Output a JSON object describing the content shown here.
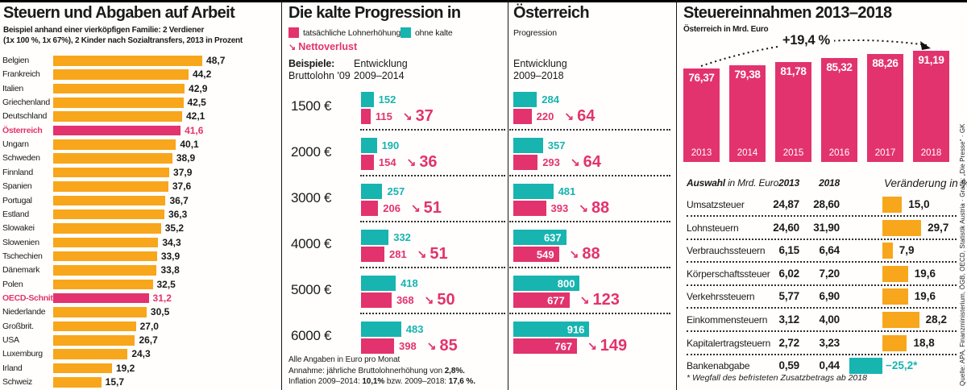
{
  "colors": {
    "pink": "#E2336E",
    "teal": "#17B4B0",
    "orange": "#F8A61B",
    "ink": "#1a1a1a"
  },
  "glyphs": {
    "netto_arrow": "↘"
  },
  "source": "Quelle: APA, Finanzministerium, ÖGB, OECD, Statistik Austria · Grafik: „Die Presse“ · GK",
  "panel1": {
    "title": "Steuern und Abgaben auf Arbeit",
    "subtitle1": "Beispiel anhand einer vierköpfigen Familie: 2 Verdiener",
    "subtitle2": "(1x 100 %, 1x 67%), 2 Kinder nach Sozialtransfers, 2013 in Prozent",
    "rows": [
      {
        "label": "Belgien",
        "value": "48,7",
        "v": 48.7,
        "highlight": false
      },
      {
        "label": "Frankreich",
        "value": "44,2",
        "v": 44.2,
        "highlight": false
      },
      {
        "label": "Italien",
        "value": "42,9",
        "v": 42.9,
        "highlight": false
      },
      {
        "label": "Griechenland",
        "value": "42,5",
        "v": 42.5,
        "highlight": false
      },
      {
        "label": "Deutschland",
        "value": "42,1",
        "v": 42.1,
        "highlight": false
      },
      {
        "label": "Österreich",
        "value": "41,6",
        "v": 41.6,
        "highlight": true
      },
      {
        "label": "Ungarn",
        "value": "40,1",
        "v": 40.1,
        "highlight": false
      },
      {
        "label": "Schweden",
        "value": "38,9",
        "v": 38.9,
        "highlight": false
      },
      {
        "label": "Finnland",
        "value": "37,9",
        "v": 37.9,
        "highlight": false
      },
      {
        "label": "Spanien",
        "value": "37,6",
        "v": 37.6,
        "highlight": false
      },
      {
        "label": "Portugal",
        "value": "36,7",
        "v": 36.7,
        "highlight": false
      },
      {
        "label": "Estland",
        "value": "36,3",
        "v": 36.3,
        "highlight": false
      },
      {
        "label": "Slowakei",
        "value": "35,2",
        "v": 35.2,
        "highlight": false
      },
      {
        "label": "Slowenien",
        "value": "34,3",
        "v": 34.3,
        "highlight": false
      },
      {
        "label": "Tschechien",
        "value": "33,9",
        "v": 33.9,
        "highlight": false
      },
      {
        "label": "Dänemark",
        "value": "33,8",
        "v": 33.8,
        "highlight": false
      },
      {
        "label": "Polen",
        "value": "32,5",
        "v": 32.5,
        "highlight": false
      },
      {
        "label": "OECD-Schnitt",
        "value": "31,2",
        "v": 31.2,
        "highlight": true
      },
      {
        "label": "Niederlande",
        "value": "30,5",
        "v": 30.5,
        "highlight": false
      },
      {
        "label": "Großbrit.",
        "value": "27,0",
        "v": 27.0,
        "highlight": false
      },
      {
        "label": "USA",
        "value": "26,7",
        "v": 26.7,
        "highlight": false
      },
      {
        "label": "Luxemburg",
        "value": "24,3",
        "v": 24.3,
        "highlight": false
      },
      {
        "label": "Irland",
        "value": "19,2",
        "v": 19.2,
        "highlight": false
      },
      {
        "label": "Schweiz",
        "value": "15,7",
        "v": 15.7,
        "highlight": false
      }
    ]
  },
  "panel2": {
    "title": "Die kalte Progression in",
    "legend_actual": "tatsächliche Lohnerhöhung",
    "legend_without": "ohne kalte",
    "netto_arrow": "↘",
    "netto_label": "Nettoverlust",
    "examples_bold": "Beispiele:",
    "examples_rest": "Bruttolohn '09",
    "col_line1": "Entwicklung",
    "col_line2": "2009–2014",
    "note1": "Alle Angaben in Euro pro Monat",
    "note2": [
      "Annahme: jährliche Bruttolohnerhöhung von ",
      "2,8%."
    ],
    "note3": [
      "Inflation 2009–2014: ",
      "10,1%",
      " bzw. 2009–2018: ",
      "17,6 %."
    ],
    "rows": [
      {
        "wage": "1500 €",
        "p2014": {
          "gross": "152",
          "gv": 152,
          "net": "115",
          "nv": 115,
          "loss": "37"
        },
        "p2018": {
          "gross": "284",
          "gv": 284,
          "net": "220",
          "nv": 220,
          "loss": "64"
        }
      },
      {
        "wage": "2000 €",
        "p2014": {
          "gross": "190",
          "gv": 190,
          "net": "154",
          "nv": 154,
          "loss": "36"
        },
        "p2018": {
          "gross": "357",
          "gv": 357,
          "net": "293",
          "nv": 293,
          "loss": "64"
        }
      },
      {
        "wage": "3000 €",
        "p2014": {
          "gross": "257",
          "gv": 257,
          "net": "206",
          "nv": 206,
          "loss": "51"
        },
        "p2018": {
          "gross": "481",
          "gv": 481,
          "net": "393",
          "nv": 393,
          "loss": "88"
        }
      },
      {
        "wage": "4000 €",
        "p2014": {
          "gross": "332",
          "gv": 332,
          "net": "281",
          "nv": 281,
          "loss": "51"
        },
        "p2018": {
          "gross": "637",
          "gv": 637,
          "net": "549",
          "nv": 549,
          "loss": "88"
        }
      },
      {
        "wage": "5000 €",
        "p2014": {
          "gross": "418",
          "gv": 418,
          "net": "368",
          "nv": 368,
          "loss": "50"
        },
        "p2018": {
          "gross": "800",
          "gv": 800,
          "net": "677",
          "nv": 677,
          "loss": "123"
        }
      },
      {
        "wage": "6000 €",
        "p2014": {
          "gross": "483",
          "gv": 483,
          "net": "398",
          "nv": 398,
          "loss": "85"
        },
        "p2018": {
          "gross": "916",
          "gv": 916,
          "net": "767",
          "nv": 767,
          "loss": "149"
        }
      }
    ]
  },
  "panel3": {
    "title": "Österreich",
    "legend_cont": "Progression",
    "col_line1": "Entwicklung",
    "col_line2": "2009–2018"
  },
  "panel4": {
    "title": "Steuereinnahmen 2013–2018",
    "subtitle": "Österreich in Mrd. Euro",
    "growth": "+19,4 %",
    "bars": [
      {
        "year": "2013",
        "value": "76,37",
        "v": 76.37
      },
      {
        "year": "2014",
        "value": "79,38",
        "v": 79.38
      },
      {
        "year": "2015",
        "value": "81,78",
        "v": 81.78
      },
      {
        "year": "2016",
        "value": "85,32",
        "v": 85.32
      },
      {
        "year": "2017",
        "value": "88,26",
        "v": 88.26
      },
      {
        "year": "2018",
        "value": "91,19",
        "v": 91.19
      }
    ],
    "table": {
      "header_label_bold": "Auswahl",
      "header_label_rest": " in Mrd. Euro",
      "header_2013": "2013",
      "header_2018": "2018",
      "header_change": "Veränderung in %",
      "rows": [
        {
          "label": "Umsatzsteuer",
          "y2013": "24,87",
          "y2018": "28,60",
          "change": "15,0",
          "cv": 15.0,
          "neg": false
        },
        {
          "label": "Lohnsteuern",
          "y2013": "24,60",
          "y2018": "31,90",
          "change": "29,7",
          "cv": 29.7,
          "neg": false
        },
        {
          "label": "Verbrauchssteuern",
          "y2013": "6,15",
          "y2018": "6,64",
          "change": "7,9",
          "cv": 7.9,
          "neg": false
        },
        {
          "label": "Körperschaftssteuer",
          "y2013": "6,02",
          "y2018": "7,20",
          "change": "19,6",
          "cv": 19.6,
          "neg": false
        },
        {
          "label": "Verkehrssteuern",
          "y2013": "5,77",
          "y2018": "6,90",
          "change": "19,6",
          "cv": 19.6,
          "neg": false
        },
        {
          "label": "Einkommensteuern",
          "y2013": "3,12",
          "y2018": "4,00",
          "change": "28,2",
          "cv": 28.2,
          "neg": false
        },
        {
          "label": "Kapitalertragsteuern",
          "y2013": "2,72",
          "y2018": "3,23",
          "change": "18,8",
          "cv": 18.8,
          "neg": false
        },
        {
          "label": "Bankenabgabe",
          "y2013": "0,59",
          "y2018": "0,44",
          "change": "−25,2*",
          "cv": 25.2,
          "neg": true
        }
      ],
      "footnote": "* Wegfall des befristeten Zusatzbetrags ab 2018"
    }
  },
  "chart_data": [
    {
      "type": "bar",
      "orientation": "horizontal",
      "title": "Steuern und Abgaben auf Arbeit",
      "subtitle": "Beispiel anhand einer vierköpfigen Familie: 2 Verdiener (1x 100 %, 1x 67%), 2 Kinder nach Sozialtransfers, 2013 in Prozent",
      "unit": "Prozent",
      "categories": [
        "Belgien",
        "Frankreich",
        "Italien",
        "Griechenland",
        "Deutschland",
        "Österreich",
        "Ungarn",
        "Schweden",
        "Finnland",
        "Spanien",
        "Portugal",
        "Estland",
        "Slowakei",
        "Slowenien",
        "Tschechien",
        "Dänemark",
        "Polen",
        "OECD-Schnitt",
        "Niederlande",
        "Großbrit.",
        "USA",
        "Luxemburg",
        "Irland",
        "Schweiz"
      ],
      "values": [
        48.7,
        44.2,
        42.9,
        42.5,
        42.1,
        41.6,
        40.1,
        38.9,
        37.9,
        37.6,
        36.7,
        36.3,
        35.2,
        34.3,
        33.9,
        33.8,
        32.5,
        31.2,
        30.5,
        27.0,
        26.7,
        24.3,
        19.2,
        15.7
      ],
      "highlighted": [
        "Österreich",
        "OECD-Schnitt"
      ]
    },
    {
      "type": "bar",
      "orientation": "horizontal",
      "title": "Die kalte Progression in Österreich",
      "unit": "Euro pro Monat",
      "categories": [
        "1500 €",
        "2000 €",
        "3000 €",
        "4000 €",
        "5000 €",
        "6000 €"
      ],
      "series": [
        {
          "name": "ohne kalte Progression 2009–2014",
          "values": [
            152,
            190,
            257,
            332,
            418,
            483
          ]
        },
        {
          "name": "tatsächliche Lohnerhöhung 2009–2014",
          "values": [
            115,
            154,
            206,
            281,
            368,
            398
          ]
        },
        {
          "name": "Nettoverlust 2009–2014",
          "values": [
            37,
            36,
            51,
            51,
            50,
            85
          ]
        },
        {
          "name": "ohne kalte Progression 2009–2018",
          "values": [
            284,
            357,
            481,
            637,
            800,
            916
          ]
        },
        {
          "name": "tatsächliche Lohnerhöhung 2009–2018",
          "values": [
            220,
            293,
            393,
            549,
            677,
            767
          ]
        },
        {
          "name": "Nettoverlust 2009–2018",
          "values": [
            64,
            64,
            88,
            88,
            123,
            149
          ]
        }
      ],
      "notes": [
        "Alle Angaben in Euro pro Monat",
        "Annahme: jährliche Bruttolohnerhöhung von 2,8%.",
        "Inflation 2009–2014: 10,1% bzw. 2009–2018: 17,6 %."
      ]
    },
    {
      "type": "bar",
      "orientation": "vertical",
      "title": "Steuereinnahmen 2013–2018",
      "subtitle": "Österreich in Mrd. Euro",
      "categories": [
        "2013",
        "2014",
        "2015",
        "2016",
        "2017",
        "2018"
      ],
      "values": [
        76.37,
        79.38,
        81.78,
        85.32,
        88.26,
        91.19
      ],
      "annotation": "+19,4 %"
    },
    {
      "type": "table",
      "columns": [
        "Auswahl in Mrd. Euro",
        "2013",
        "2018",
        "Veränderung in %"
      ],
      "rows": [
        [
          "Umsatzsteuer",
          24.87,
          28.6,
          15.0
        ],
        [
          "Lohnsteuern",
          24.6,
          31.9,
          29.7
        ],
        [
          "Verbrauchssteuern",
          6.15,
          6.64,
          7.9
        ],
        [
          "Körperschaftssteuer",
          6.02,
          7.2,
          19.6
        ],
        [
          "Verkehrssteuern",
          5.77,
          6.9,
          19.6
        ],
        [
          "Einkommensteuern",
          3.12,
          4.0,
          28.2
        ],
        [
          "Kapitalertragsteuern",
          2.72,
          3.23,
          18.8
        ],
        [
          "Bankenabgabe",
          0.59,
          0.44,
          -25.2
        ]
      ],
      "footnote": "* Wegfall des befristeten Zusatzbetrags ab 2018"
    }
  ]
}
